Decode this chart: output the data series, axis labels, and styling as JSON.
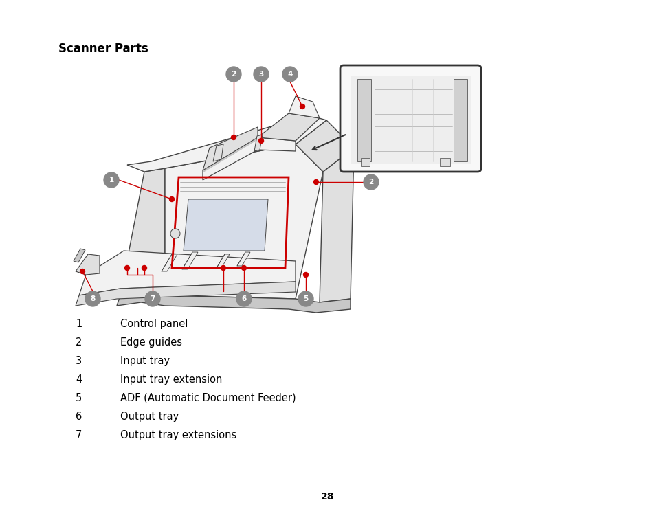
{
  "title": "Scanner Parts",
  "title_fontsize": 12,
  "parts_list": [
    {
      "num": "1",
      "desc": "Control panel"
    },
    {
      "num": "2",
      "desc": "Edge guides"
    },
    {
      "num": "3",
      "desc": "Input tray"
    },
    {
      "num": "4",
      "desc": "Input tray extension"
    },
    {
      "num": "5",
      "desc": "ADF (Automatic Document Feeder)"
    },
    {
      "num": "6",
      "desc": "Output tray"
    },
    {
      "num": "7",
      "desc": "Output tray extensions"
    }
  ],
  "page_number": "28",
  "bg_color": "#ffffff",
  "text_color": "#000000",
  "red_color": "#cc0000",
  "gray_color": "#888888",
  "white_color": "#ffffff",
  "dark_color": "#333333",
  "line_color": "#444444",
  "fill_light": "#f2f2f2",
  "fill_mid": "#e0e0e0",
  "fill_dark": "#c8c8c8"
}
